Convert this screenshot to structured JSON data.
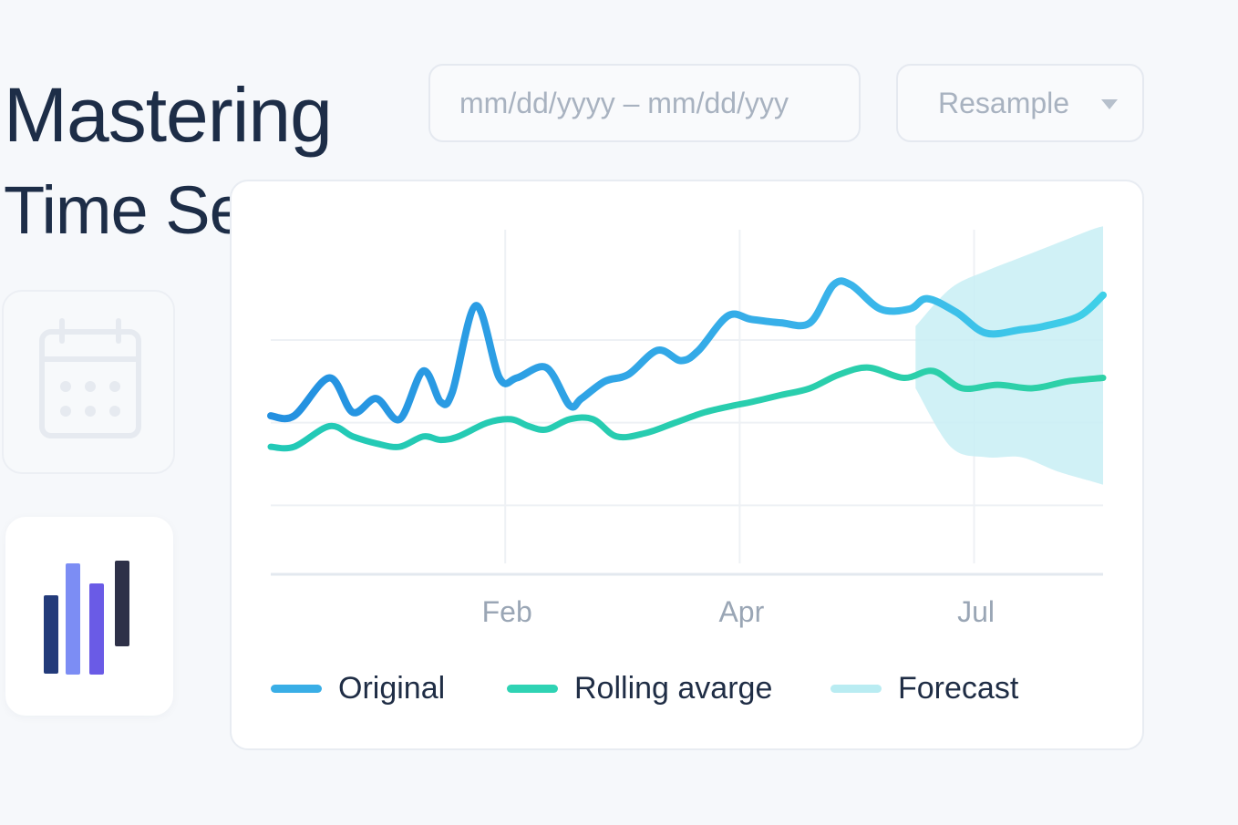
{
  "header": {
    "title_line1": "Mastering",
    "title_line2": "Time Series"
  },
  "controls": {
    "date_range_placeholder": "mm/dd/yyyy – mm/dd/yyy",
    "resample_label": "Resample"
  },
  "colors": {
    "original": "#39aee6",
    "rolling": "#2fd3b4",
    "forecast": "#c8eff5",
    "grid": "#e8ecf2",
    "title": "#1d2d47"
  },
  "chart_data": {
    "type": "line",
    "title": "",
    "xlabel": "",
    "ylabel": "",
    "x_range": [
      0,
      12
    ],
    "ylim": [
      0,
      100
    ],
    "x_ticks": [
      {
        "value": 2,
        "label": "Feb"
      },
      {
        "value": 4,
        "label": "Apr"
      },
      {
        "value": 6,
        "label": "Jul"
      }
    ],
    "series": [
      {
        "name": "Original",
        "x": [
          0,
          0.2,
          0.5,
          0.7,
          0.9,
          1.1,
          1.3,
          1.45,
          1.55,
          1.75,
          1.95,
          2.1,
          2.35,
          2.55,
          2.65,
          2.85,
          3.05,
          3.3,
          3.5,
          3.65,
          3.9,
          4.1,
          4.35,
          4.6,
          4.8,
          4.95,
          5.2,
          5.45,
          5.6,
          5.85,
          6.1,
          6.4,
          6.6,
          6.9,
          7.1
        ],
        "values": [
          46,
          46,
          57,
          47,
          51,
          45,
          59,
          50,
          53,
          78,
          57,
          57,
          60,
          49,
          51,
          56,
          58,
          65,
          62,
          65,
          75,
          74,
          73,
          73,
          84,
          84,
          77,
          77,
          80,
          76,
          70,
          71,
          72,
          75,
          81
        ]
      },
      {
        "name": "Rolling avarge",
        "x": [
          0,
          0.2,
          0.5,
          0.7,
          0.9,
          1.1,
          1.3,
          1.45,
          1.6,
          1.85,
          2.05,
          2.2,
          2.35,
          2.55,
          2.75,
          2.95,
          3.2,
          3.45,
          3.7,
          3.95,
          4.1,
          4.35,
          4.6,
          4.85,
          5.1,
          5.4,
          5.65,
          5.9,
          6.2,
          6.5,
          6.8,
          7.1
        ],
        "values": [
          37,
          37,
          43,
          40,
          38,
          37,
          40,
          39,
          40,
          44,
          45,
          43,
          42,
          45,
          45,
          40,
          41,
          44,
          47,
          49,
          50,
          52,
          54,
          58,
          60,
          57,
          59,
          54,
          55,
          54,
          56,
          57
        ]
      },
      {
        "name": "Forecast",
        "x": [
          5.5,
          5.8,
          6.1,
          6.4,
          6.7,
          7.0,
          7.1
        ],
        "upper": [
          72,
          83,
          88,
          92,
          96,
          100,
          101
        ],
        "lower": [
          54,
          37,
          34,
          34,
          30,
          27,
          26
        ]
      }
    ]
  },
  "legend": {
    "original": "Original",
    "rolling": "Rolling avarge",
    "forecast": "Forecast"
  },
  "icons": {
    "calendar": "calendar-icon",
    "bars": "bar-chart-icon",
    "dropdown": "chevron-down-icon"
  },
  "bar_icon_values": [
    58,
    62,
    72,
    72
  ]
}
